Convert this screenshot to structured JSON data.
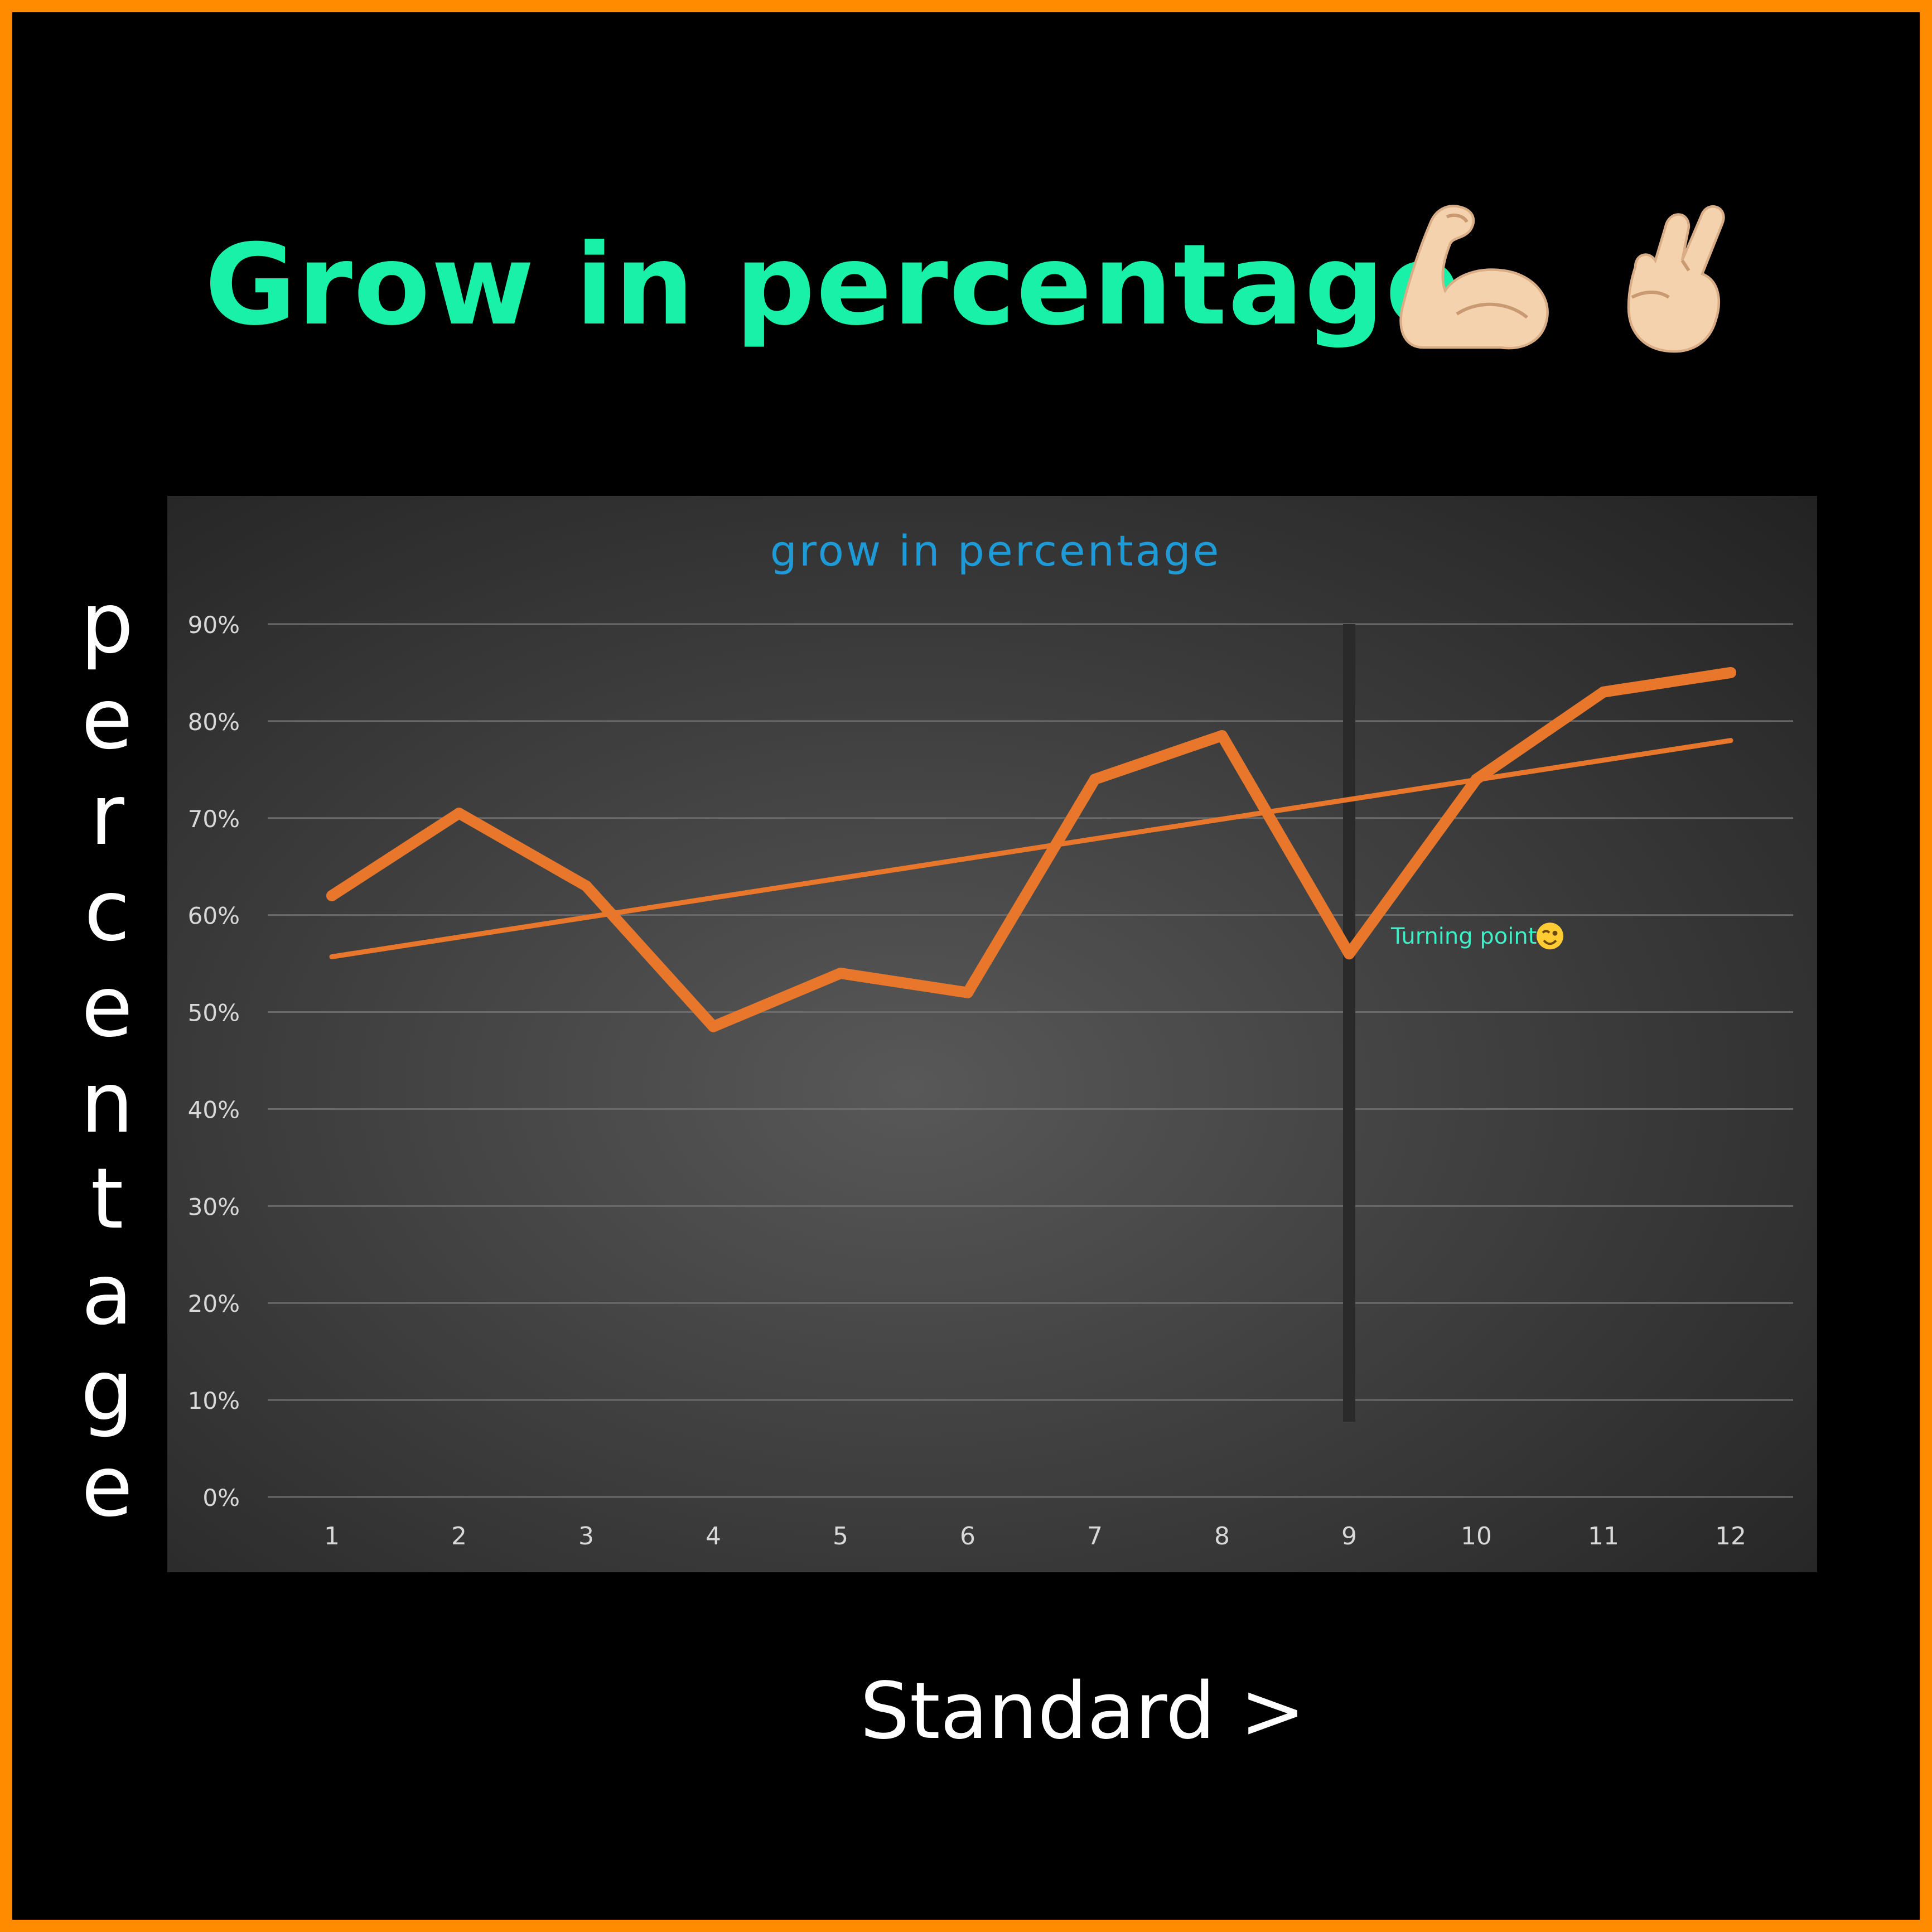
{
  "header": {
    "title": "Grow in percentage"
  },
  "side_label": "percentage",
  "footer": {
    "label": "Standard >"
  },
  "colors": {
    "frame": "#FF8C00",
    "title": "#19F0A8",
    "chart_title": "#1E9BD7",
    "line": "#E8762B",
    "annotation": "#3DF0C8",
    "skin": "#F5D2AE"
  },
  "icons": [
    "flexed-biceps-icon",
    "crossed-fingers-icon",
    "winking-face-icon"
  ],
  "chart_data": {
    "type": "line",
    "title": "grow in percentage",
    "x": [
      1,
      2,
      3,
      4,
      5,
      6,
      7,
      8,
      9,
      10,
      11,
      12
    ],
    "series": [
      {
        "values": [
          62,
          70.5,
          63,
          48.5,
          54,
          52,
          74,
          78.5,
          56,
          74,
          83,
          85
        ]
      }
    ],
    "trendline": {
      "start": 55.7,
      "end": 78
    },
    "ylim": [
      0,
      90
    ],
    "yticks": [
      "0%",
      "10%",
      "20%",
      "30%",
      "40%",
      "50%",
      "60%",
      "70%",
      "80%",
      "90%"
    ],
    "xticks": [
      "1",
      "2",
      "3",
      "4",
      "5",
      "6",
      "7",
      "8",
      "9",
      "10",
      "11",
      "12"
    ],
    "grid": true,
    "marker_line_x": 9,
    "annotation": {
      "text": "Turning point",
      "x": 9,
      "y": 56
    }
  }
}
